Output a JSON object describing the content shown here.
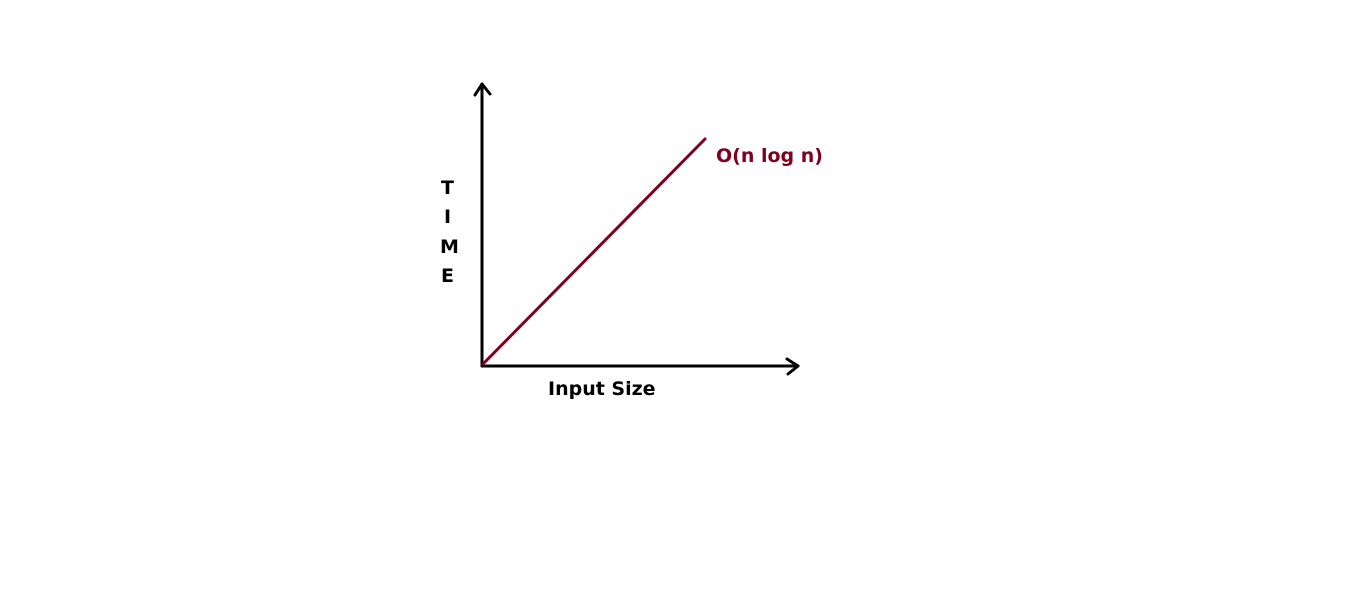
{
  "diagram": {
    "x_axis_label": "Input Size",
    "y_axis_label": [
      "T",
      "I",
      "M",
      "E"
    ],
    "curve_label": "O(n log n)",
    "colors": {
      "axes": "#000000",
      "curve": "#800020",
      "labels": "#000000"
    },
    "icons": {
      "x_axis_arrow": "arrow-right-icon",
      "y_axis_arrow": "arrow-up-icon"
    }
  }
}
